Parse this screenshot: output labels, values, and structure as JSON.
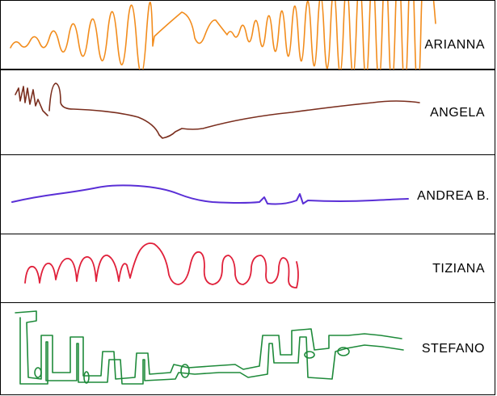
{
  "rows": [
    {
      "name": "ARIANNA",
      "stroke_color": "#f28c1c"
    },
    {
      "name": "ANGELA",
      "stroke_color": "#7a2e1e"
    },
    {
      "name": "ANDREA B.",
      "stroke_color": "#5a2fd6"
    },
    {
      "name": "TIZIANA",
      "stroke_color": "#e0203a"
    },
    {
      "name": "STEFANO",
      "stroke_color": "#1e8a3a"
    }
  ]
}
